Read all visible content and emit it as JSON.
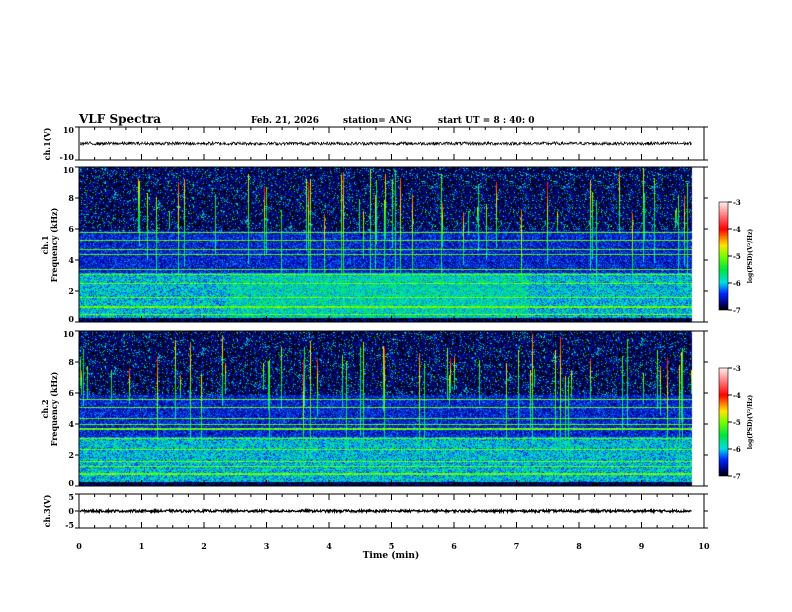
{
  "header": {
    "title": "VLF Spectra",
    "date": "Feb. 21, 2026",
    "station": "station= ANG",
    "start": "start  UT =  8 : 40: 0"
  },
  "chart_data": {
    "type": "heatmap",
    "xlabel": "Time (min)",
    "xlim": [
      0,
      10
    ],
    "x_ticks": [
      "0",
      "1",
      "2",
      "3",
      "4",
      "5",
      "6",
      "7",
      "8",
      "9",
      "10"
    ],
    "data_end_min": 9.8,
    "panels": [
      {
        "id": "ch1-waveform",
        "type": "line",
        "ylabel": "ch.1(V)",
        "ylim": [
          -10,
          10
        ],
        "y_ticks": [
          "10",
          "-10"
        ],
        "mean": 0,
        "amplitude": 1
      },
      {
        "id": "ch1-spectrogram",
        "type": "heatmap",
        "ylabel_1": "ch.1",
        "ylabel_2": "Frequency (kHz)",
        "ylim": [
          0,
          10
        ],
        "y_ticks": [
          "0",
          "2",
          "4",
          "6",
          "8",
          "10"
        ],
        "line_freqs_khz": [
          0.5,
          1.0,
          1.6,
          2.5,
          3.1,
          3.4,
          4.4,
          4.7,
          5.3,
          5.8
        ],
        "colorbar": {
          "label": "log(PSD)(V²/Hz)",
          "range": [
            -7,
            -3
          ],
          "ticks": [
            "-3",
            "-4",
            "-5",
            "-6",
            "-7"
          ]
        }
      },
      {
        "id": "ch2-spectrogram",
        "type": "heatmap",
        "ylabel_1": "ch.2",
        "ylabel_2": "Frequency (kHz)",
        "ylim": [
          0,
          10
        ],
        "y_ticks": [
          "0",
          "2",
          "4",
          "6",
          "8",
          "10"
        ],
        "line_freqs_khz": [
          0.8,
          1.3,
          1.6,
          2.4,
          3.1,
          3.7,
          4.0,
          4.4,
          5.1,
          5.6
        ],
        "colorbar": {
          "label": "log(PSD)(V²/Hz)",
          "range": [
            -7,
            -3
          ],
          "ticks": [
            "-3",
            "-4",
            "-5",
            "-6",
            "-7"
          ]
        }
      },
      {
        "id": "ch3-waveform",
        "type": "line",
        "ylabel": "ch.3(V)",
        "ylim": [
          -5,
          5
        ],
        "y_ticks": [
          "5",
          "0",
          "-5"
        ],
        "mean": 0,
        "amplitude": 0.35
      }
    ]
  }
}
